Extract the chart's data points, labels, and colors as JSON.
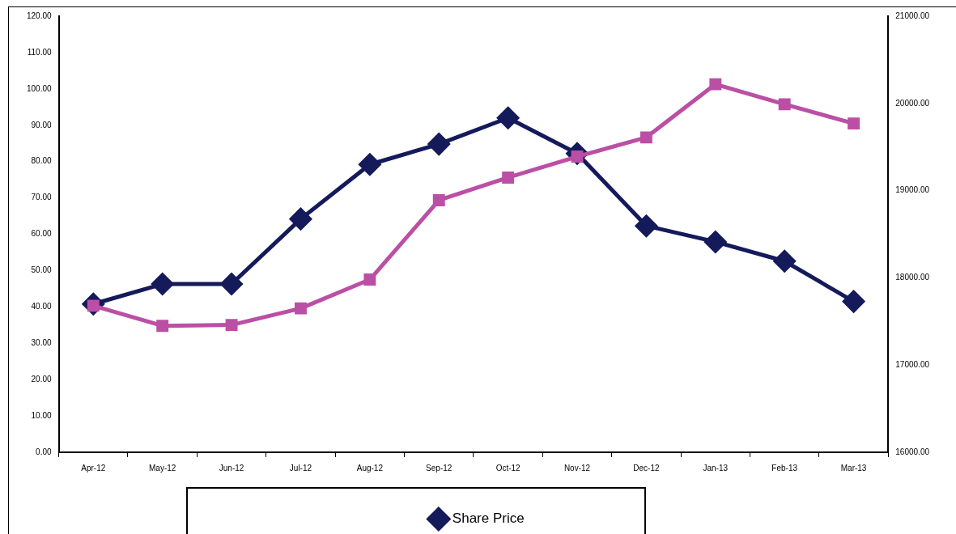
{
  "chart_data": {
    "type": "line",
    "categories": [
      "Apr-12",
      "May-12",
      "Jun-12",
      "Jul-12",
      "Aug-12",
      "Sep-12",
      "Oct-12",
      "Nov-12",
      "Dec-12",
      "Jan-13",
      "Feb-13",
      "Mar-13"
    ],
    "series": [
      {
        "name": "Share Price",
        "color": "#141a5a",
        "marker": "diamond",
        "values": [
          40.8,
          46.3,
          46.3,
          64.2,
          79.2,
          84.8,
          92,
          82.2,
          62.3,
          57.9,
          52.6,
          41.5
        ]
      },
      {
        "color": "#bb4fa5",
        "marker": "square",
        "axis": "y2",
        "values": [
          17680,
          17450,
          17460,
          17650,
          17980,
          18890,
          19150,
          19390,
          19610,
          20220,
          19990,
          19770
        ]
      }
    ],
    "ylim": [
      0,
      120
    ],
    "yticks": [
      {
        "value": 0,
        "label": "0.00"
      },
      {
        "value": 10,
        "label": "10.00"
      },
      {
        "value": 20,
        "label": "20.00"
      },
      {
        "value": 30,
        "label": "30.00"
      },
      {
        "value": 40,
        "label": "40.00"
      },
      {
        "value": 50,
        "label": "50.00"
      },
      {
        "value": 60,
        "label": "60.00"
      },
      {
        "value": 70,
        "label": "70.00"
      },
      {
        "value": 80,
        "label": "80.00"
      },
      {
        "value": 90,
        "label": "90.00"
      },
      {
        "value": 100,
        "label": "100.00"
      },
      {
        "value": 110,
        "label": "110.00"
      },
      {
        "value": 120,
        "label": "120.00"
      }
    ],
    "y2lim": [
      16000,
      21000
    ],
    "y2ticks": [
      {
        "value": 16000,
        "label": "16000.00"
      },
      {
        "value": 17000,
        "label": "17000.00"
      },
      {
        "value": 18000,
        "label": "18000.00"
      },
      {
        "value": 19000,
        "label": "19000.00"
      },
      {
        "value": 20000,
        "label": "20000.00"
      },
      {
        "value": 21000,
        "label": "21000.00"
      }
    ],
    "grid": false,
    "legend": "bottom",
    "line_style": "solid"
  }
}
